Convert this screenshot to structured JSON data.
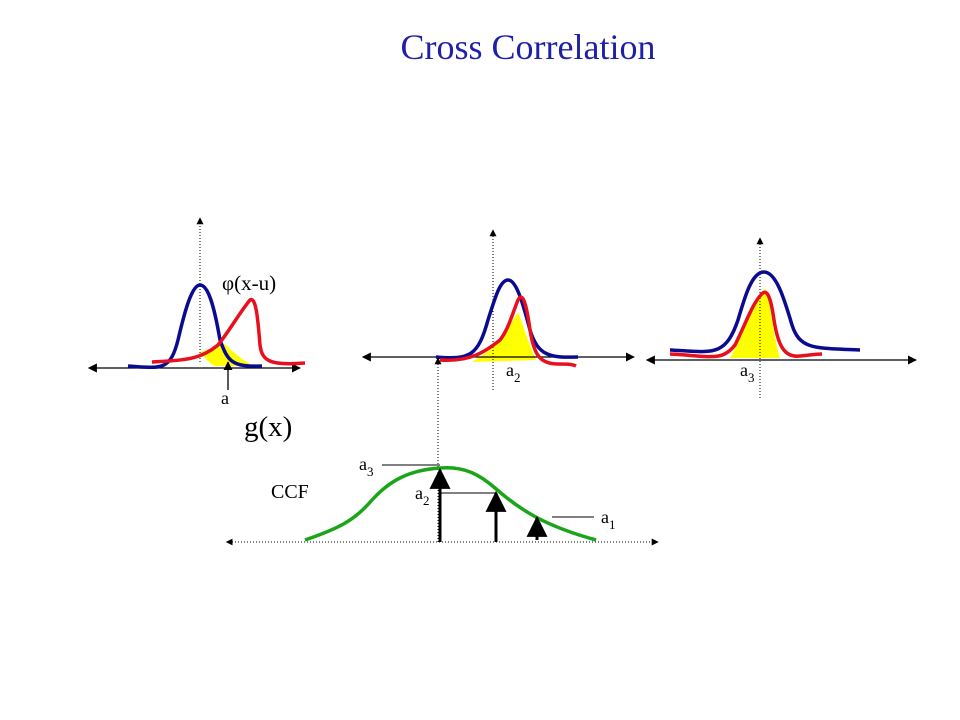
{
  "title": "Cross Correlation",
  "colors": {
    "title": "#1f1fa8",
    "template_curve": "#0b0b8f",
    "shifted_curve": "#e8101e",
    "overlap_fill": "#ffff00",
    "ccf_curve": "#1aa51a",
    "axis": "#000000"
  },
  "labels": {
    "phi": "φ(x-u)",
    "g": "g(x)",
    "ccf": "CCF",
    "a_base": "a",
    "sub_1": "1",
    "sub_2": "2",
    "sub_3": "3"
  }
}
